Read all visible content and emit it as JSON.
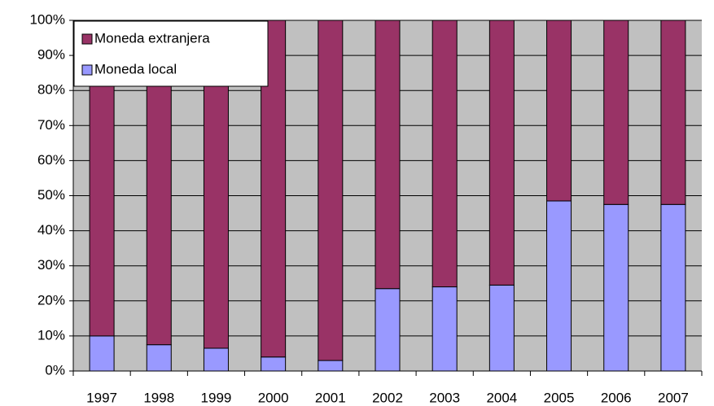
{
  "chart_data": {
    "type": "stacked_bar",
    "categories": [
      "1997",
      "1998",
      "1999",
      "2000",
      "2001",
      "2002",
      "2003",
      "2004",
      "2005",
      "2006",
      "2007"
    ],
    "series": [
      {
        "name": "Moneda local",
        "color": "#9999ff",
        "values": [
          10,
          7.5,
          6.5,
          4,
          3,
          23.5,
          24,
          24.5,
          48.5,
          47.5,
          47.5
        ]
      },
      {
        "name": "Moneda extranjera",
        "color": "#993366",
        "values": [
          90,
          92.5,
          93.5,
          96,
          97,
          76.5,
          76,
          75.5,
          51.5,
          52.5,
          52.5
        ]
      }
    ],
    "ylim": [
      0,
      100
    ],
    "yticks": [
      {
        "value": 0,
        "label": "0%"
      },
      {
        "value": 10,
        "label": "10%"
      },
      {
        "value": 20,
        "label": "20%"
      },
      {
        "value": 30,
        "label": "30%"
      },
      {
        "value": 40,
        "label": "40%"
      },
      {
        "value": 50,
        "label": "50%"
      },
      {
        "value": 60,
        "label": "60%"
      },
      {
        "value": 70,
        "label": "70%"
      },
      {
        "value": 80,
        "label": "80%"
      },
      {
        "value": 90,
        "label": "90%"
      },
      {
        "value": 100,
        "label": "100%"
      }
    ],
    "grid": true,
    "plot_background": "#c0c0c0",
    "legend": "top-left"
  }
}
